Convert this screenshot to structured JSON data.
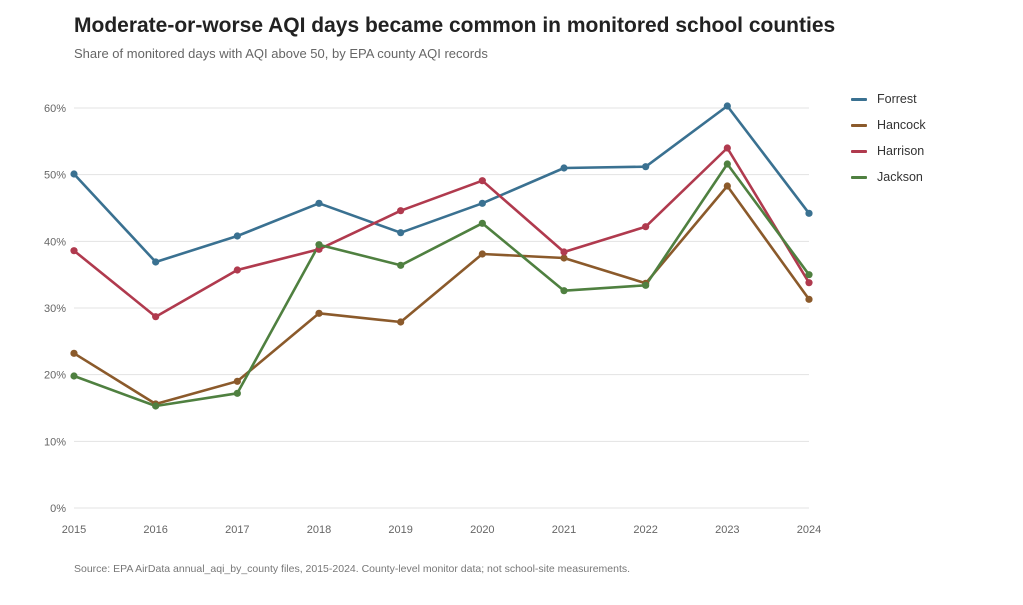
{
  "chart_data": {
    "type": "line",
    "title": "Moderate-or-worse AQI days became common in monitored school counties",
    "subtitle": "Share of monitored days with AQI above 50, by EPA county AQI records",
    "source": "Source: EPA AirData annual_aqi_by_county files, 2015-2024. County-level monitor data; not school-site measurements.",
    "xlabel": "",
    "ylabel": "",
    "x": [
      "2015",
      "2016",
      "2017",
      "2018",
      "2019",
      "2020",
      "2021",
      "2022",
      "2023",
      "2024"
    ],
    "ylim": [
      0,
      60
    ],
    "yticks": [
      0,
      10,
      20,
      30,
      40,
      50,
      60
    ],
    "ytick_labels": [
      "0%",
      "10%",
      "20%",
      "30%",
      "40%",
      "50%",
      "60%"
    ],
    "grid": true,
    "legend_position": "top-right",
    "series": [
      {
        "name": "Forrest",
        "color": "#3a7191",
        "values": [
          50.1,
          36.9,
          40.8,
          45.7,
          41.3,
          45.7,
          51.0,
          51.2,
          60.3,
          44.2
        ]
      },
      {
        "name": "Hancock",
        "color": "#8b5a2b",
        "values": [
          23.2,
          15.6,
          19.0,
          29.2,
          27.9,
          38.1,
          37.5,
          33.7,
          48.3,
          31.3
        ]
      },
      {
        "name": "Harrison",
        "color": "#b03a4e",
        "values": [
          38.6,
          28.7,
          35.7,
          38.8,
          44.6,
          49.1,
          38.4,
          42.2,
          54.0,
          33.8
        ]
      },
      {
        "name": "Jackson",
        "color": "#4f8040",
        "values": [
          19.8,
          15.3,
          17.2,
          39.5,
          36.4,
          42.7,
          32.6,
          33.4,
          51.6,
          35.0
        ]
      }
    ]
  }
}
